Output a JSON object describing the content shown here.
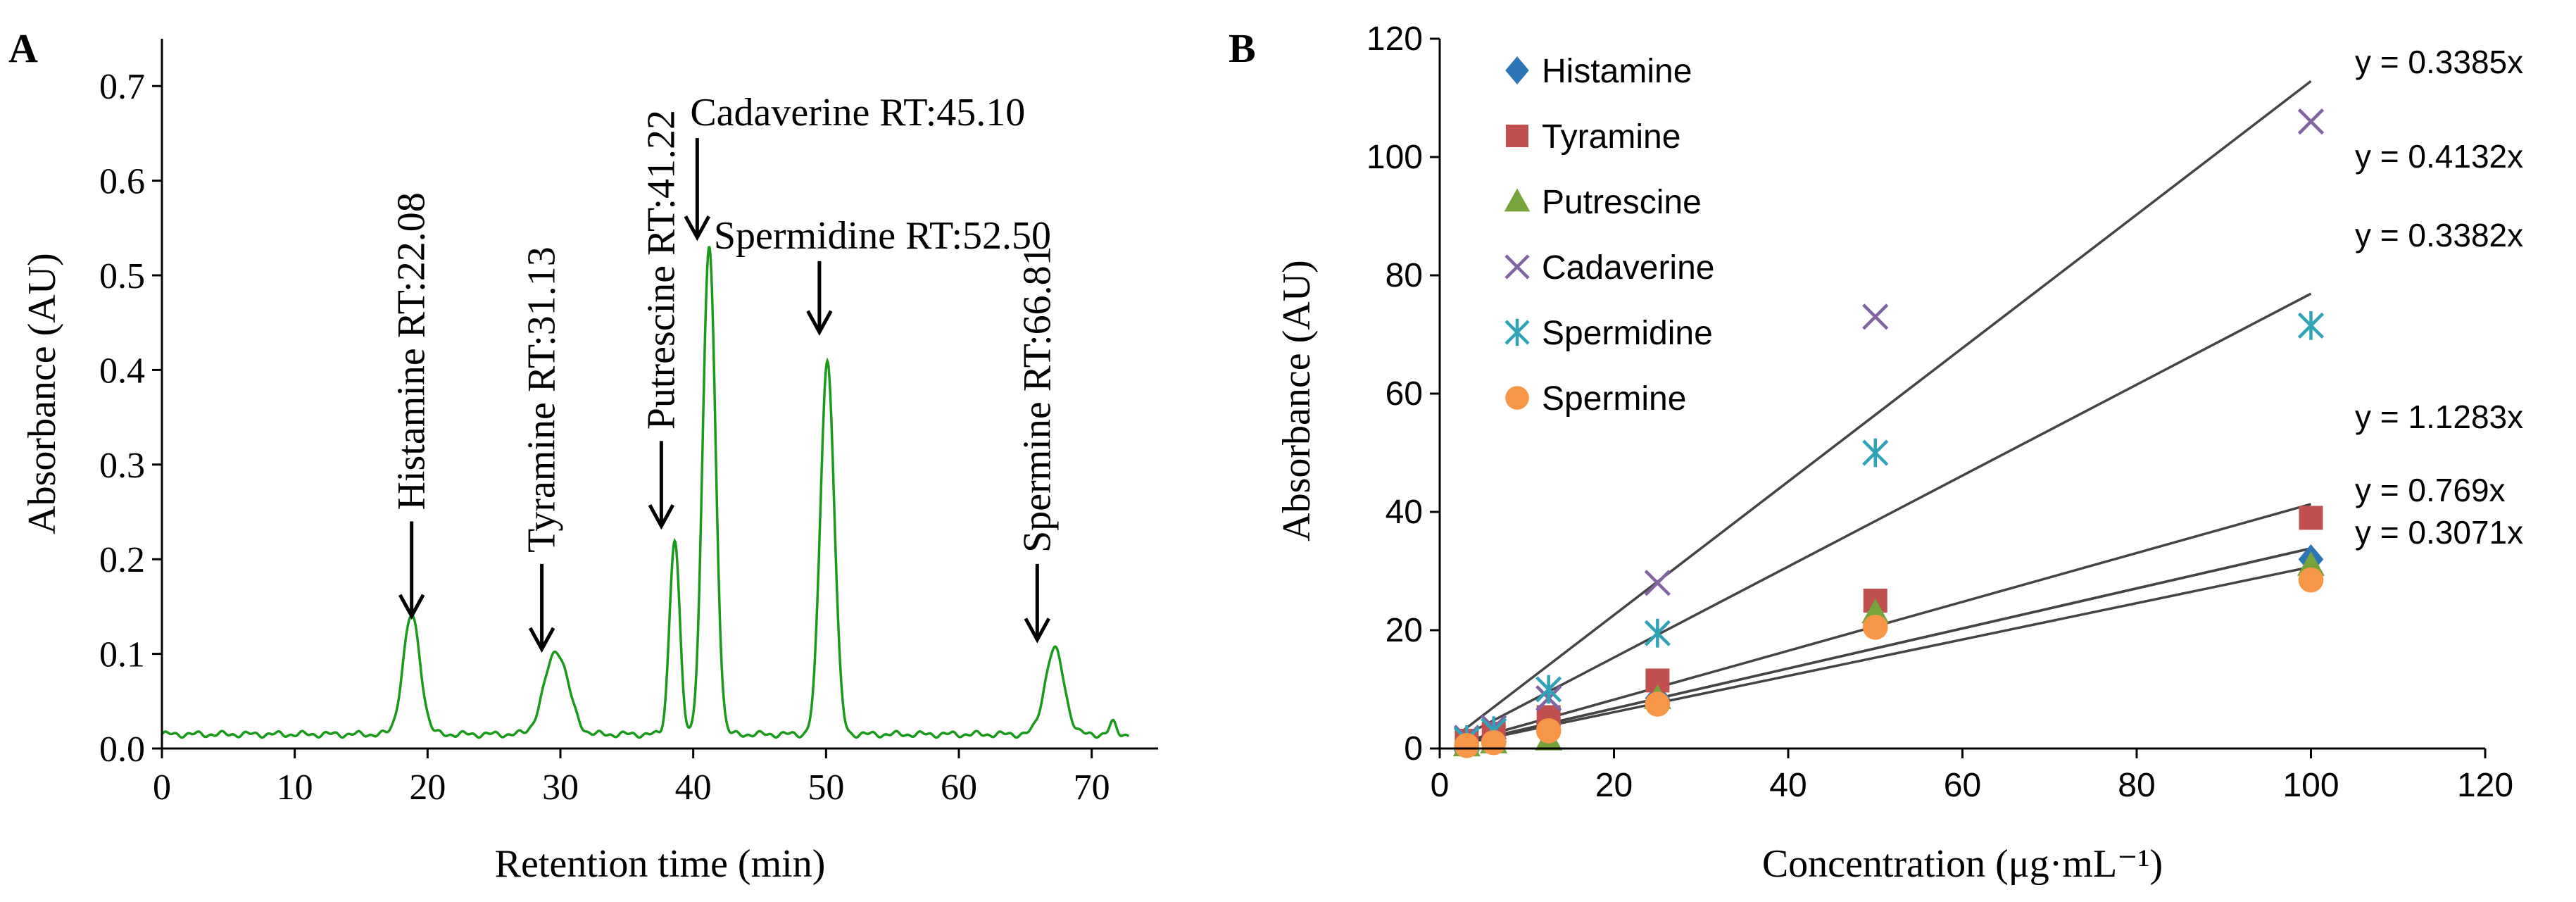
{
  "panels": [
    {
      "panel_label": "A",
      "chart_data": {
        "type": "line",
        "title": "",
        "xlabel": "Retention time (min)",
        "ylabel": "Absorbance (AU)",
        "xlim": [
          0,
          75
        ],
        "ylim": [
          0,
          0.75
        ],
        "xticks": [
          0,
          10,
          20,
          30,
          40,
          50,
          60,
          70
        ],
        "yticks": [
          0.0,
          0.1,
          0.2,
          0.3,
          0.4,
          0.5,
          0.6,
          0.7
        ],
        "ytick_labels": [
          "0.0",
          "0.1",
          "0.2",
          "0.3",
          "0.4",
          "0.5",
          "0.6",
          "0.7"
        ],
        "line_color": "#1a9a1a",
        "grid": false,
        "baseline": 0.015,
        "peaks": [
          {
            "center": 18.8,
            "height": 0.125,
            "width": 0.65
          },
          {
            "center": 29.7,
            "height": 0.088,
            "width": 0.9
          },
          {
            "center": 38.6,
            "height": 0.205,
            "width": 0.38
          },
          {
            "center": 41.2,
            "height": 0.515,
            "width": 0.48
          },
          {
            "center": 50.1,
            "height": 0.395,
            "width": 0.52
          },
          {
            "center": 67.2,
            "height": 0.09,
            "width": 0.72
          },
          {
            "center": 71.6,
            "height": 0.012,
            "width": 0.25
          }
        ],
        "x_end": 72.8,
        "annotations": [
          {
            "text": "Histamine RT:22.08",
            "orientation": "vertical",
            "arrow_x": 18.8,
            "arrow_top": 0.24,
            "arrow_bottom": 0.14
          },
          {
            "text": "Tyramine RT:31.13",
            "orientation": "vertical",
            "arrow_x": 28.6,
            "arrow_top": 0.195,
            "arrow_bottom": 0.105
          },
          {
            "text": "Putrescine RT:41.22",
            "orientation": "vertical",
            "arrow_x": 37.6,
            "arrow_top": 0.325,
            "arrow_bottom": 0.235
          },
          {
            "text": "Cadaverine RT:45.10",
            "orientation": "horizontal",
            "arrow_x": 40.3,
            "arrow_top": 0.645,
            "arrow_bottom": 0.54
          },
          {
            "text": "Spermidine RT:52.50",
            "orientation": "horizontal",
            "arrow_x": 49.5,
            "arrow_top": 0.515,
            "arrow_bottom": 0.44
          },
          {
            "text": "Spermine RT:66.81",
            "orientation": "vertical",
            "arrow_x": 65.9,
            "arrow_top": 0.195,
            "arrow_bottom": 0.115
          }
        ]
      }
    },
    {
      "panel_label": "B",
      "chart_data": {
        "type": "scatter",
        "title": "",
        "xlabel": "Concentration (μg·mL⁻¹)",
        "ylabel": "Absorbance (AU)",
        "xlim": [
          0,
          120
        ],
        "ylim": [
          0,
          120
        ],
        "xticks": [
          0,
          20,
          40,
          60,
          80,
          100,
          120
        ],
        "yticks": [
          0,
          20,
          40,
          60,
          80,
          100,
          120
        ],
        "grid": false,
        "legend_position": "top-left",
        "series": [
          {
            "name": "Histamine",
            "marker": "diamond",
            "color": "#2e75b6",
            "slope": 0.3385,
            "points": [
              [
                3.1,
                1.0
              ],
              [
                6.2,
                2.2
              ],
              [
                12.5,
                4.2
              ],
              [
                25,
                8.5
              ],
              [
                50,
                21
              ],
              [
                100,
                32
              ]
            ]
          },
          {
            "name": "Tyramine",
            "marker": "square",
            "color": "#c0504d",
            "slope": 0.4132,
            "points": [
              [
                3.1,
                1.3
              ],
              [
                6.2,
                2.5
              ],
              [
                12.5,
                5.3
              ],
              [
                25,
                11.5
              ],
              [
                50,
                25
              ],
              [
                100,
                39
              ]
            ]
          },
          {
            "name": "Putrescine",
            "marker": "triangle",
            "color": "#77a33c",
            "slope": 0.3382,
            "points": [
              [
                3.1,
                0.5
              ],
              [
                6.2,
                1.0
              ],
              [
                12.5,
                1.5
              ],
              [
                25,
                8.5
              ],
              [
                50,
                23
              ],
              [
                100,
                31
              ]
            ]
          },
          {
            "name": "Cadaverine",
            "marker": "x",
            "color": "#8064a2",
            "slope": 1.1283,
            "points": [
              [
                3.1,
                1.8
              ],
              [
                6.2,
                3.5
              ],
              [
                12.5,
                8.5
              ],
              [
                25,
                28
              ],
              [
                50,
                73
              ],
              [
                100,
                106
              ]
            ]
          },
          {
            "name": "Spermidine",
            "marker": "asterisk",
            "color": "#31a3b8",
            "slope": 0.769,
            "points": [
              [
                3.1,
                1.5
              ],
              [
                6.2,
                3.0
              ],
              [
                12.5,
                10
              ],
              [
                25,
                19.5
              ],
              [
                50,
                50
              ],
              [
                100,
                71.5
              ]
            ]
          },
          {
            "name": "Spermine",
            "marker": "circle",
            "color": "#f79646",
            "slope": 0.3071,
            "points": [
              [
                3.1,
                0.5
              ],
              [
                6.2,
                1.0
              ],
              [
                12.5,
                3.0
              ],
              [
                25,
                7.5
              ],
              [
                50,
                20.5
              ],
              [
                100,
                28.5
              ]
            ]
          }
        ],
        "trendline_color": "#444444",
        "equations": [
          "y = 0.3385x",
          "y = 0.4132x",
          "y = 0.3382x",
          "y = 1.1283x",
          "y = 0.769x",
          "y = 0.3071x"
        ]
      }
    }
  ]
}
